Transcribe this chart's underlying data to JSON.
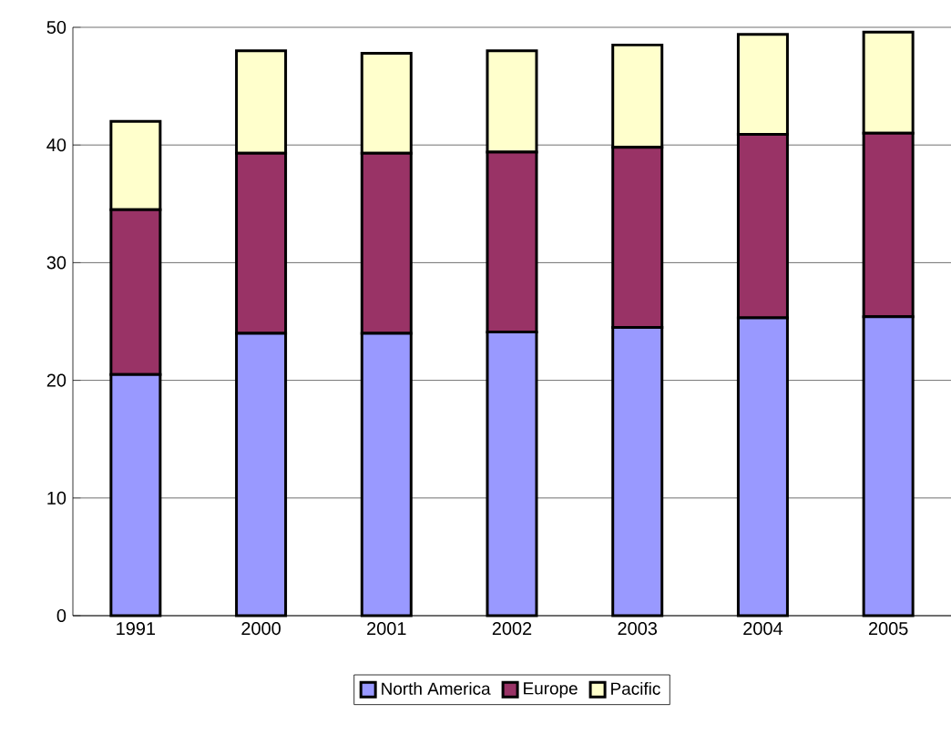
{
  "chart_data": {
    "type": "bar",
    "stacked": true,
    "categories": [
      "1991",
      "2000",
      "2001",
      "2002",
      "2003",
      "2004",
      "2005"
    ],
    "series": [
      {
        "name": "North America",
        "color": "#9999ff",
        "values": [
          20.5,
          24.0,
          24.0,
          24.1,
          24.5,
          25.3,
          25.4
        ]
      },
      {
        "name": "Europe",
        "color": "#993366",
        "values": [
          14.0,
          15.3,
          15.3,
          15.3,
          15.3,
          15.6,
          15.6
        ]
      },
      {
        "name": "Pacific",
        "color": "#ffffcc",
        "values": [
          7.5,
          8.7,
          8.5,
          8.6,
          8.7,
          8.5,
          8.6
        ]
      }
    ],
    "ylim": [
      0,
      50
    ],
    "yticks": [
      0,
      10,
      20,
      30,
      40,
      50
    ],
    "grid": "y",
    "legend": "bottom"
  }
}
